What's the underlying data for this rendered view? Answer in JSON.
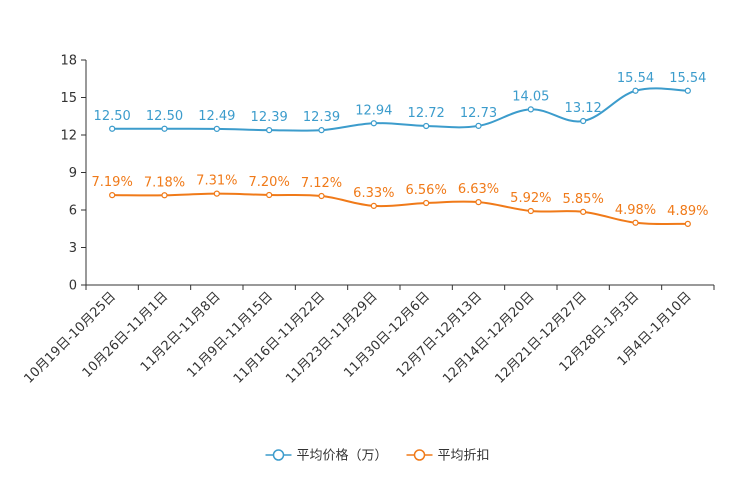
{
  "chart_data": {
    "type": "line",
    "title": "",
    "xlabel": "",
    "ylabel": "",
    "ylim": [
      0,
      18
    ],
    "yticks": [
      0,
      3,
      6,
      9,
      12,
      15,
      18
    ],
    "grid": false,
    "legend_position": "bottom-center",
    "categories": [
      "10月19日-10月25日",
      "10月26日-11月1日",
      "11月2日-11月8日",
      "11月9日-11月15日",
      "11月16日-11月22日",
      "11月23日-11月29日",
      "11月30日-12月6日",
      "12月7日-12月13日",
      "12月14日-12月20日",
      "12月21日-12月27日",
      "12月28日-1月3日",
      "1月4日-1月10日"
    ],
    "series": [
      {
        "name": "平均价格（万）",
        "color": "#3c9ccc",
        "values": [
          12.5,
          12.5,
          12.49,
          12.39,
          12.39,
          12.94,
          12.72,
          12.73,
          14.05,
          13.12,
          15.54,
          15.54
        ],
        "labels": [
          "12.50",
          "12.50",
          "12.49",
          "12.39",
          "12.39",
          "12.94",
          "12.72",
          "12.73",
          "14.05",
          "13.12",
          "15.54",
          "15.54"
        ]
      },
      {
        "name": "平均折扣",
        "color": "#f07a19",
        "values": [
          7.19,
          7.18,
          7.31,
          7.2,
          7.12,
          6.33,
          6.56,
          6.63,
          5.92,
          5.85,
          4.98,
          4.89
        ],
        "labels": [
          "7.19%",
          "7.18%",
          "7.31%",
          "7.20%",
          "7.12%",
          "6.33%",
          "6.56%",
          "6.63%",
          "5.92%",
          "5.85%",
          "4.98%",
          "4.89%"
        ]
      }
    ]
  }
}
